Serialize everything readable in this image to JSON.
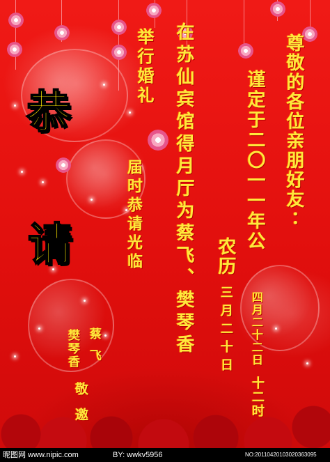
{
  "colors": {
    "background": "#e2100f",
    "text": "#ffe93b",
    "big_text": "#ffe800",
    "footer_bg": "#000000"
  },
  "big_chars": {
    "first": "恭",
    "second": "请"
  },
  "columns": {
    "greeting": "尊敬的各位亲朋好友∶",
    "date_intro": "谨定于二〇一一年公",
    "lunar_label": "农历",
    "lunar_date": "三月二十日",
    "gregorian_date": "四月二十二日",
    "time": "十二时",
    "venue": "在苏仙宾馆得月厅为蔡飞、樊琴香",
    "event": "举行婚礼",
    "request": "届时恭请光临",
    "host_1": "蔡飞",
    "host_2": "樊琴香",
    "invite": "敬邀"
  },
  "footer": {
    "site": "昵图网 www.nipic.com",
    "author": "BY: wwkv5956",
    "id": "NO:20110420103020363095"
  }
}
